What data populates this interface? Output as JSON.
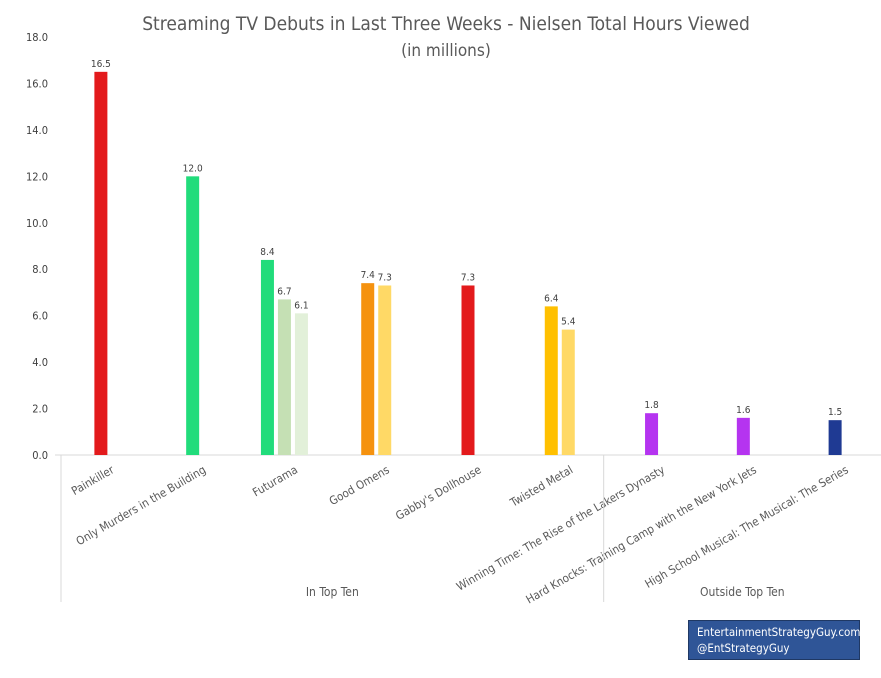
{
  "chart_data": {
    "type": "bar",
    "title": "Streaming TV Debuts in Last Three Weeks - Nielsen Total Hours Viewed",
    "subtitle": "(in millions)",
    "ylim": [
      0,
      18
    ],
    "yticks": [
      "0.0",
      "2.0",
      "4.0",
      "6.0",
      "8.0",
      "10.0",
      "12.0",
      "14.0",
      "16.0",
      "18.0"
    ],
    "categories": [
      "Painkiller",
      "Only Murders in the Building",
      "Futurama",
      "Good Omens",
      "Gabby's Dollhouse",
      "Twisted Metal",
      "Winning Time: The Rise of the Lakers Dynasty",
      "Hard Knocks: Training Camp with the New York Jets",
      "High School Musical: The Musical: The Series"
    ],
    "bars": [
      {
        "category": 0,
        "week": 1,
        "value": 16.5,
        "label": "16.5",
        "color": "#e31a1c"
      },
      {
        "category": 1,
        "week": 1,
        "value": 12.0,
        "label": "12.0",
        "color": "#21dc7b"
      },
      {
        "category": 2,
        "week": 1,
        "value": 8.4,
        "label": "8.4",
        "color": "#21dc7b"
      },
      {
        "category": 2,
        "week": 2,
        "value": 6.7,
        "label": "6.7",
        "color": "#c5e0b4"
      },
      {
        "category": 2,
        "week": 3,
        "value": 6.1,
        "label": "6.1",
        "color": "#e2f0d9"
      },
      {
        "category": 3,
        "week": 1,
        "value": 7.4,
        "label": "7.4",
        "color": "#f5920f"
      },
      {
        "category": 3,
        "week": 2,
        "value": 7.3,
        "label": "7.3",
        "color": "#ffd966"
      },
      {
        "category": 4,
        "week": 1,
        "value": 7.3,
        "label": "7.3",
        "color": "#e31a1c"
      },
      {
        "category": 5,
        "week": 1,
        "value": 6.4,
        "label": "6.4",
        "color": "#ffc000"
      },
      {
        "category": 5,
        "week": 2,
        "value": 5.4,
        "label": "5.4",
        "color": "#ffd966"
      },
      {
        "category": 6,
        "week": 1,
        "value": 1.8,
        "label": "1.8",
        "color": "#b534f0"
      },
      {
        "category": 7,
        "week": 1,
        "value": 1.6,
        "label": "1.6",
        "color": "#b534f0"
      },
      {
        "category": 8,
        "week": 1,
        "value": 1.5,
        "label": "1.5",
        "color": "#1f3a93"
      }
    ],
    "groups": [
      {
        "label": "In Top Ten",
        "from": 0,
        "to": 5
      },
      {
        "label": "Outside Top Ten",
        "from": 6,
        "to": 8
      }
    ],
    "grid": false,
    "legend": "none"
  },
  "credit": {
    "line1": "EntertainmentStrategyGuy.com",
    "line2": "@EntStrategyGuy"
  }
}
